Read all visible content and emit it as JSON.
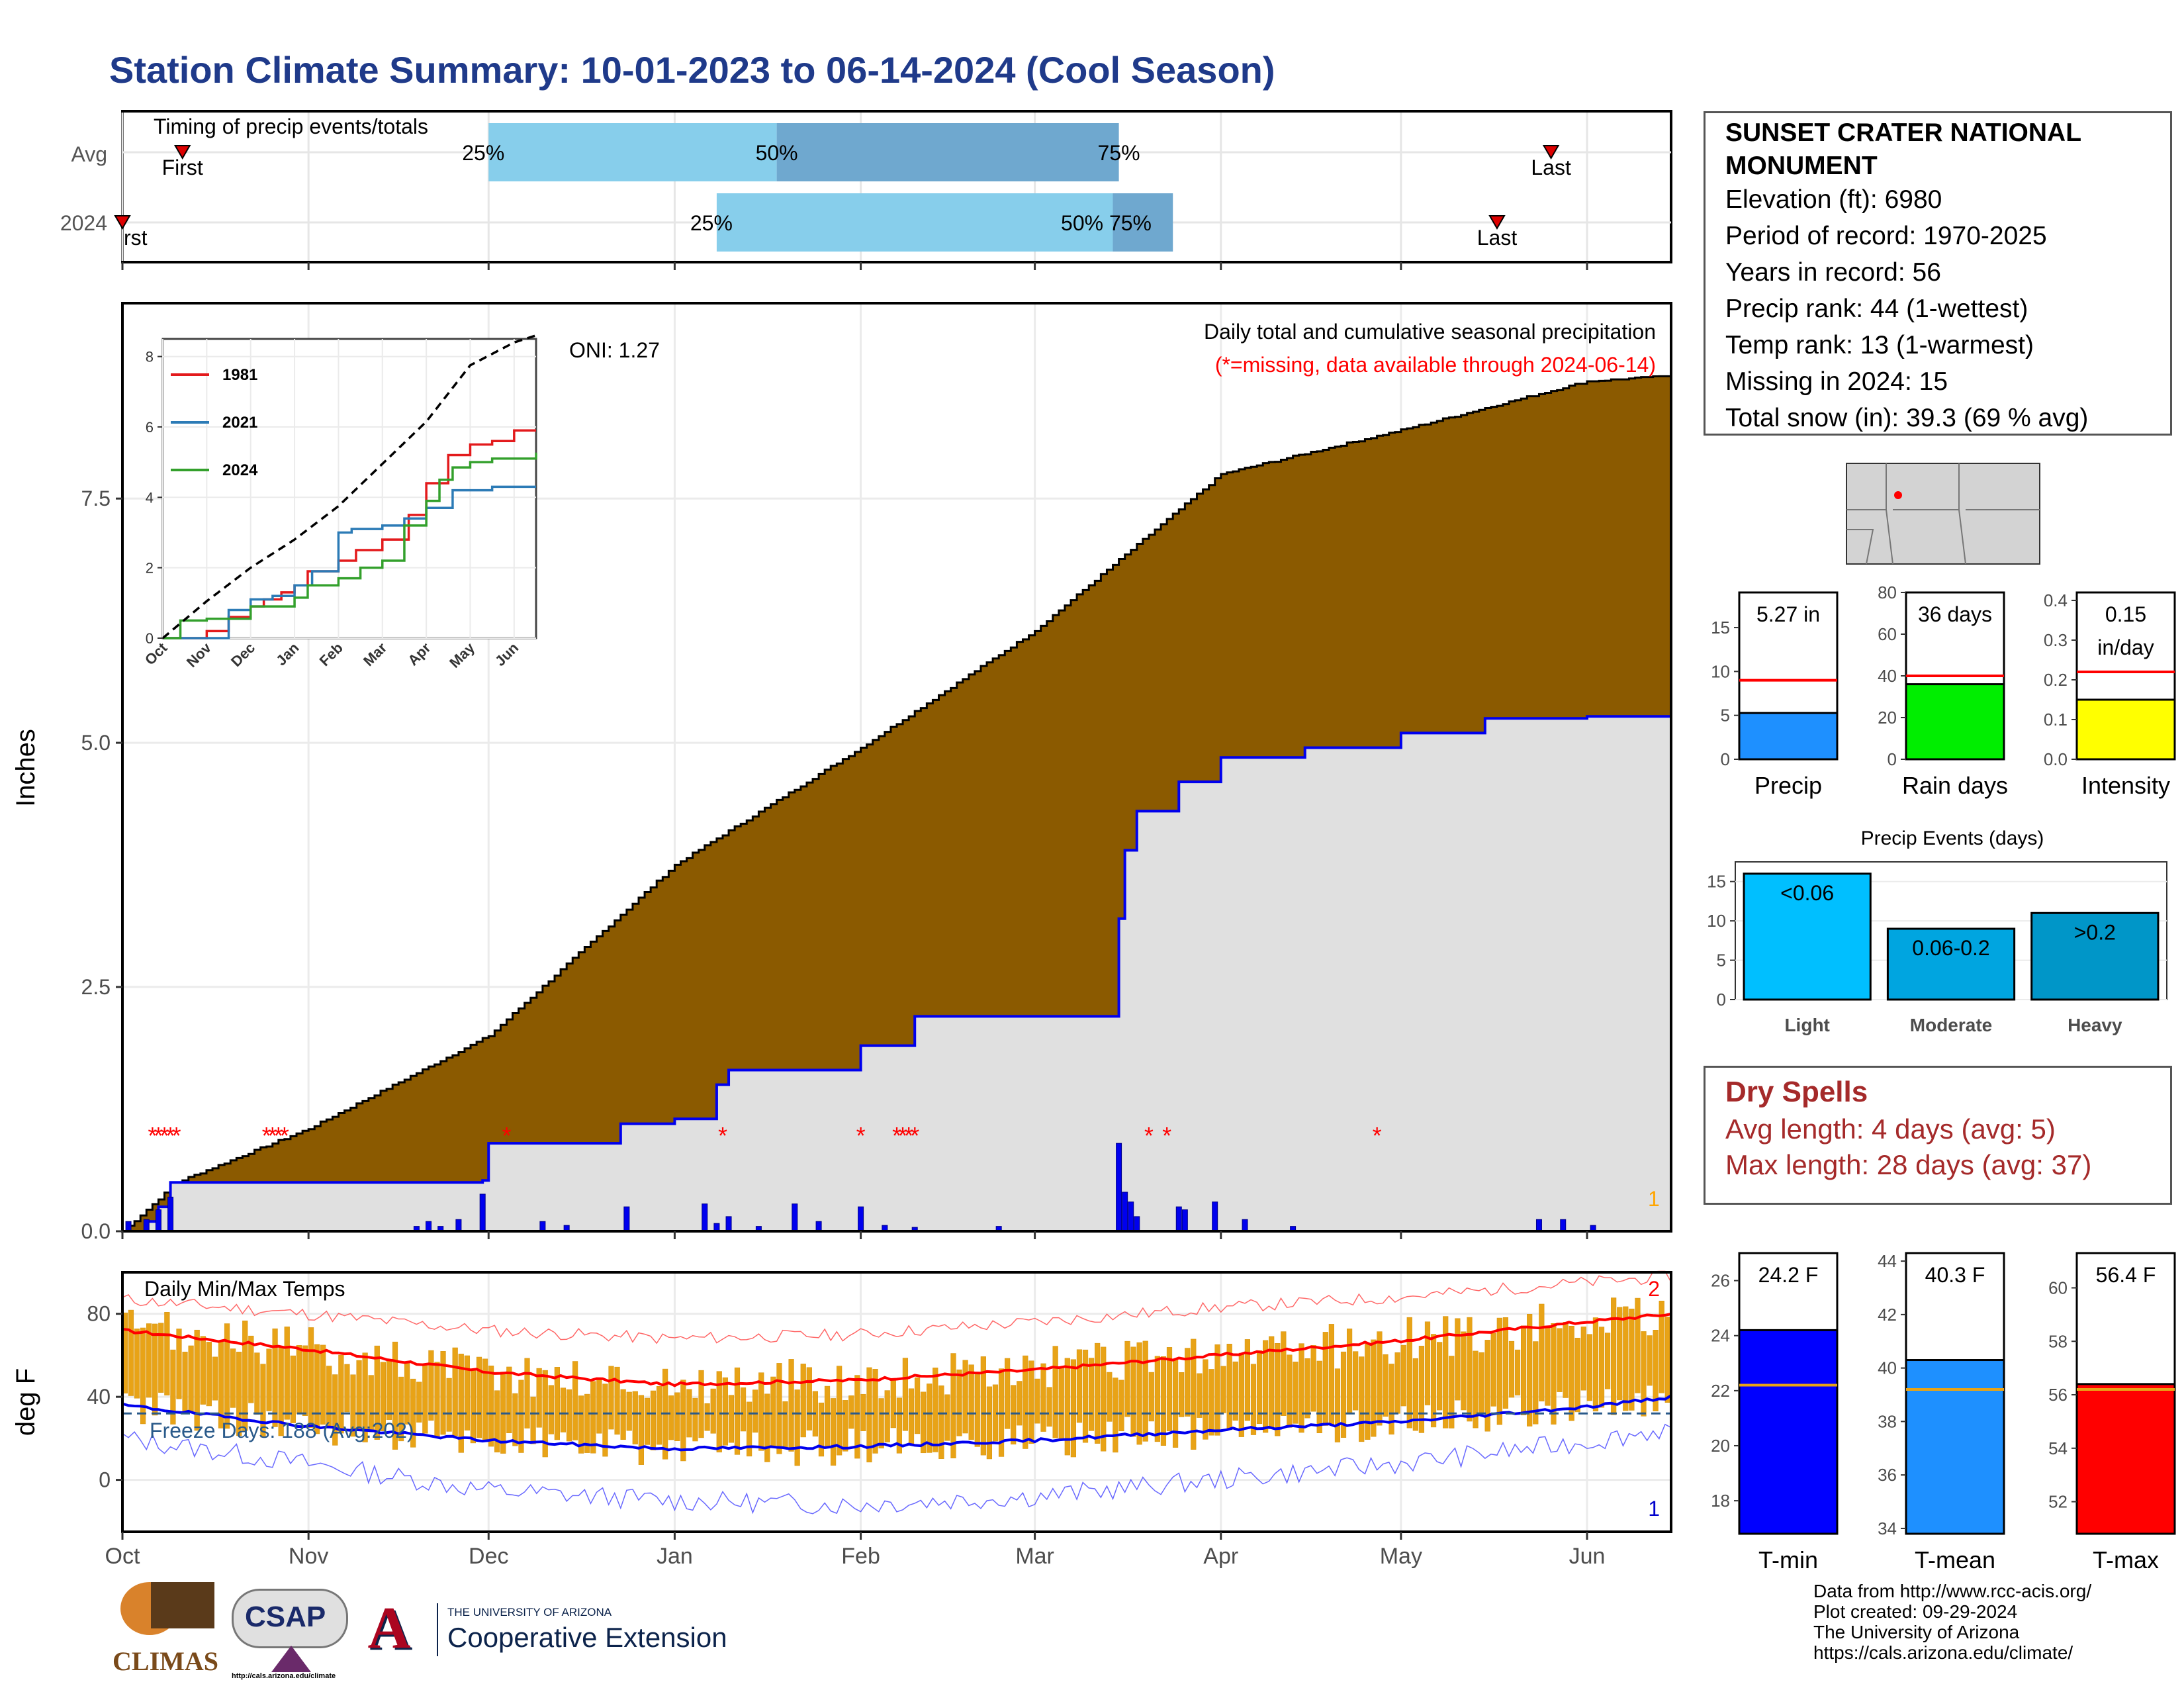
{
  "title": "Station Climate Summary: 10-01-2023 to 06-14-2024 (Cool Season)",
  "station": {
    "name_line1": "SUNSET CRATER NATIONAL",
    "name_line2": "MONUMENT",
    "elevation": "Elevation (ft): 6980",
    "period": "Period of record: 1970-2025",
    "years": "Years in record: 56",
    "precip_rank": "Precip rank: 44 (1-wettest)",
    "temp_rank": "Temp rank: 13 (1-warmest)",
    "missing": "Missing in 2024: 15",
    "snow": "Total snow (in): 39.3 (69 % avg)"
  },
  "dry_spells": {
    "title": "Dry Spells",
    "avg": "Avg length: 4 days (avg: 5)",
    "max": "Max length: 28 days (avg: 37)"
  },
  "credits": {
    "line1": "Data from http://www.rcc-acis.org/",
    "line2": "Plot created: 09-29-2024",
    "line3": "The University of Arizona",
    "line4": "https://cals.arizona.edu/climate/"
  },
  "logos": {
    "climas": "CLIMAS",
    "csap": "CSAP",
    "csap_url": "http://cals.arizona.edu/climate",
    "ua_small": "THE UNIVERSITY OF ARIZONA",
    "ua_ext": "Cooperative Extension"
  },
  "colors": {
    "title": "#1f3a8a",
    "brown": "#8b5a00",
    "obs_blue": "#0000ee",
    "light_blue": "#87ceeb",
    "mid_blue": "#6fa8cf",
    "dry_red": "#a52a2a",
    "tmax_red": "#ff0000",
    "tmin_blue": "#0000ff",
    "bar_orange": "#e8a317"
  },
  "chart_data": [
    {
      "id": "timing",
      "type": "bar",
      "title": "Timing of precip events/totals",
      "categories": [
        "Avg",
        "2024"
      ],
      "x_tick_labels": [
        "Oct",
        "Nov",
        "Dec",
        "Jan",
        "Feb",
        "Mar",
        "Apr",
        "May",
        "Jun"
      ],
      "rows": [
        {
          "label": "Avg",
          "first": "10-11",
          "p25": "12-01",
          "p50": "01-18",
          "p75": "03-15",
          "last": "05-26",
          "first_label": "First",
          "last_label": "Last",
          "p25_label": "25%",
          "p50_label": "50%",
          "p75_label": "75%"
        },
        {
          "label": "2024",
          "first": "10-01",
          "p25": "01-08",
          "p50": "03-14",
          "p75": "03-24",
          "last": "05-17",
          "first_label": "rst",
          "last_label": "Last",
          "p25_label": "25%",
          "p50_label": "50% 75%"
        }
      ]
    },
    {
      "id": "precip",
      "type": "area",
      "title": "Daily total and cumulative seasonal precipitation",
      "subtitle": "(*=missing, data available through 2024-06-14)",
      "ylabel": "Inches",
      "ylim": [
        0,
        9.5
      ],
      "y_ticks": [
        "0.0",
        "2.5",
        "5.0",
        "7.5"
      ],
      "oni": "ONI: 1.27",
      "corner_label": "1",
      "avg_cumulative": {
        "dates": [
          "10-01",
          "10-10",
          "11-01",
          "12-01",
          "01-01",
          "02-01",
          "03-01",
          "04-01",
          "05-01",
          "06-01",
          "06-14"
        ],
        "values": [
          0,
          0.5,
          1.05,
          2.0,
          3.75,
          4.95,
          6.15,
          7.75,
          8.2,
          8.7,
          8.75
        ]
      },
      "obs_cumulative": {
        "dates": [
          "10-01",
          "10-05",
          "10-07",
          "10-09",
          "11-30",
          "12-01",
          "12-23",
          "01-01",
          "01-08",
          "01-10",
          "02-01",
          "02-10",
          "03-15",
          "03-16",
          "03-18",
          "03-25",
          "04-01",
          "04-15",
          "05-01",
          "05-15",
          "06-01",
          "06-14"
        ],
        "values": [
          0,
          0.1,
          0.25,
          0.5,
          0.52,
          0.9,
          1.1,
          1.15,
          1.5,
          1.65,
          1.9,
          2.2,
          3.2,
          3.9,
          4.3,
          4.6,
          4.85,
          4.95,
          5.1,
          5.25,
          5.27,
          5.27
        ]
      },
      "daily_bars": {
        "dates": [
          "10-02",
          "10-05",
          "10-07",
          "10-09",
          "11-19",
          "11-21",
          "11-23",
          "11-26",
          "11-30",
          "12-10",
          "12-14",
          "12-24",
          "01-06",
          "01-08",
          "01-10",
          "01-15",
          "01-21",
          "01-25",
          "02-01",
          "02-05",
          "02-10",
          "02-24",
          "03-15",
          "03-16",
          "03-17",
          "03-18",
          "03-25",
          "03-26",
          "03-31",
          "04-05",
          "04-13",
          "05-24",
          "05-28",
          "06-02"
        ],
        "values": [
          0.1,
          0.12,
          0.22,
          0.35,
          0.05,
          0.1,
          0.05,
          0.12,
          0.38,
          0.1,
          0.06,
          0.25,
          0.28,
          0.08,
          0.15,
          0.05,
          0.28,
          0.1,
          0.25,
          0.06,
          0.04,
          0.05,
          0.9,
          0.4,
          0.3,
          0.15,
          0.25,
          0.22,
          0.3,
          0.12,
          0.05,
          0.12,
          0.12,
          0.06
        ]
      },
      "missing_dates": [
        "10-06",
        "10-07",
        "10-08",
        "10-09",
        "10-10",
        "10-25",
        "10-26",
        "10-27",
        "10-28",
        "12-04",
        "01-09",
        "02-01",
        "02-07",
        "02-08",
        "02-09",
        "02-10",
        "03-20",
        "03-23",
        "04-27"
      ]
    },
    {
      "id": "inset_cumulative",
      "type": "line",
      "x_labels": [
        "Oct",
        "Nov",
        "Dec",
        "Jan",
        "Feb",
        "Mar",
        "Apr",
        "May",
        "Jun"
      ],
      "y_ticks": [
        "0",
        "2",
        "4",
        "6",
        "8"
      ],
      "ylim": [
        0,
        8.5
      ],
      "series": [
        {
          "name": "1981",
          "color": "#e31a1c",
          "x": [
            0,
            1,
            1.5,
            2,
            2.3,
            2.7,
            3,
            3.3,
            4,
            4.4,
            5,
            5.6,
            6,
            6.5,
            7,
            7.5,
            8,
            8.5
          ],
          "y": [
            0,
            0.2,
            0.6,
            0.9,
            1.1,
            1.3,
            1.5,
            1.9,
            2.2,
            2.5,
            2.8,
            3.5,
            4.4,
            5.2,
            5.5,
            5.6,
            5.9,
            5.9
          ]
        },
        {
          "name": "2021",
          "color": "#2c7bb6",
          "x": [
            0,
            1.5,
            2,
            2.5,
            3,
            3.4,
            4,
            4.3,
            5,
            5.5,
            6,
            6.6,
            7,
            7.5,
            8.5
          ],
          "y": [
            0,
            0.8,
            1.1,
            1.2,
            1.5,
            1.9,
            3.0,
            3.1,
            3.2,
            3.4,
            3.7,
            4.2,
            4.2,
            4.3,
            4.3
          ]
        },
        {
          "name": "2024",
          "color": "#33a02c",
          "x": [
            0,
            0.4,
            1,
            2,
            3,
            3.3,
            4,
            4.5,
            5,
            5.5,
            6,
            6.3,
            6.6,
            7,
            7.5,
            8.5
          ],
          "y": [
            0,
            0.5,
            0.55,
            0.9,
            1.15,
            1.5,
            1.7,
            2.0,
            2.2,
            3.2,
            3.9,
            4.5,
            4.85,
            5.0,
            5.1,
            5.27
          ]
        },
        {
          "name": "avg",
          "color": "#000000",
          "x": [
            0,
            1,
            2,
            3,
            4,
            5,
            6,
            7,
            8,
            8.5
          ],
          "y": [
            0,
            1.05,
            2.0,
            2.8,
            3.75,
            4.95,
            6.15,
            7.75,
            8.4,
            8.6
          ]
        }
      ]
    },
    {
      "id": "temps",
      "type": "bar",
      "title": "Daily Min/Max Temps",
      "ylabel": "deg F",
      "ylim": [
        -25,
        100
      ],
      "y_ticks": [
        "0",
        "40",
        "80"
      ],
      "x_tick_labels": [
        "Oct",
        "Nov",
        "Dec",
        "Jan",
        "Feb",
        "Mar",
        "Apr",
        "May",
        "Jun"
      ],
      "freeze_line": 32,
      "freeze_text": "Freeze Days: 188 (Avg:202)",
      "top_right_label": "2",
      "bottom_right_label": "1",
      "avg_tmax": {
        "months": [
          0,
          1,
          2,
          3,
          4,
          5,
          6,
          7,
          8,
          8.5
        ],
        "values": [
          72,
          63,
          52,
          46,
          48,
          53,
          60,
          67,
          76,
          80
        ]
      },
      "avg_tmin": {
        "months": [
          0,
          1,
          2,
          3,
          4,
          5,
          6,
          7,
          8,
          8.5
        ],
        "values": [
          36,
          26,
          19,
          15,
          16,
          19,
          24,
          28,
          35,
          40
        ]
      },
      "rec_tmax": {
        "months": [
          0,
          1,
          2,
          3,
          4,
          5,
          6,
          7,
          8,
          8.5
        ],
        "values": [
          87,
          80,
          72,
          68,
          70,
          76,
          83,
          88,
          95,
          98
        ]
      },
      "rec_tmin": {
        "months": [
          0,
          1,
          2,
          3,
          4,
          5,
          6,
          7,
          8,
          8.5
        ],
        "values": [
          20,
          8,
          -5,
          -10,
          -12,
          -8,
          0,
          8,
          18,
          25
        ]
      }
    },
    {
      "id": "precip_totals",
      "type": "bar",
      "categories": [
        "Precip",
        "Rain days",
        "Intensity"
      ],
      "values": [
        5.27,
        36,
        0.15
      ],
      "value_labels": [
        "5.27 in",
        "36 days",
        "0.15"
      ],
      "value_label_2": [
        "",
        "",
        "in/day"
      ],
      "averages": [
        9.0,
        40,
        0.22
      ],
      "ylims": [
        [
          0,
          19
        ],
        [
          0,
          80
        ],
        [
          0,
          0.42
        ]
      ],
      "y_ticks": [
        [
          "0",
          "5",
          "10",
          "15"
        ],
        [
          "0",
          "20",
          "40",
          "60",
          "80"
        ],
        [
          "0.0",
          "0.1",
          "0.2",
          "0.3",
          "0.4"
        ]
      ],
      "bar_colors": [
        "#1e90ff",
        "#00ee00",
        "#ffff00"
      ]
    },
    {
      "id": "precip_events",
      "type": "bar",
      "title": "Precip Events (days)",
      "categories": [
        "Light",
        "Moderate",
        "Heavy"
      ],
      "values": [
        16,
        9,
        11
      ],
      "bar_labels": [
        "<0.06",
        "0.06-0.2",
        ">0.2"
      ],
      "ylim": [
        0,
        17.5
      ],
      "y_ticks": [
        "0",
        "5",
        "10",
        "15"
      ],
      "bar_colors": [
        "#00bfff",
        "#00a5e0",
        "#0096c8"
      ]
    },
    {
      "id": "temp_avgs",
      "type": "bar",
      "categories": [
        "T-min",
        "T-mean",
        "T-max"
      ],
      "values": [
        24.2,
        40.3,
        56.4
      ],
      "value_labels": [
        "24.2 F",
        "40.3 F",
        "56.4 F"
      ],
      "averages": [
        22.2,
        39.2,
        56.2
      ],
      "ylims": [
        [
          16.8,
          27.0
        ],
        [
          33.8,
          44.3
        ],
        [
          50.8,
          61.3
        ]
      ],
      "y_ticks": [
        [
          "18",
          "20",
          "22",
          "24",
          "26"
        ],
        [
          "34",
          "36",
          "38",
          "40",
          "42",
          "44"
        ],
        [
          "52",
          "54",
          "56",
          "58",
          "60"
        ]
      ],
      "bar_colors": [
        "#0000ff",
        "#1e90ff",
        "#ff0000"
      ]
    }
  ]
}
